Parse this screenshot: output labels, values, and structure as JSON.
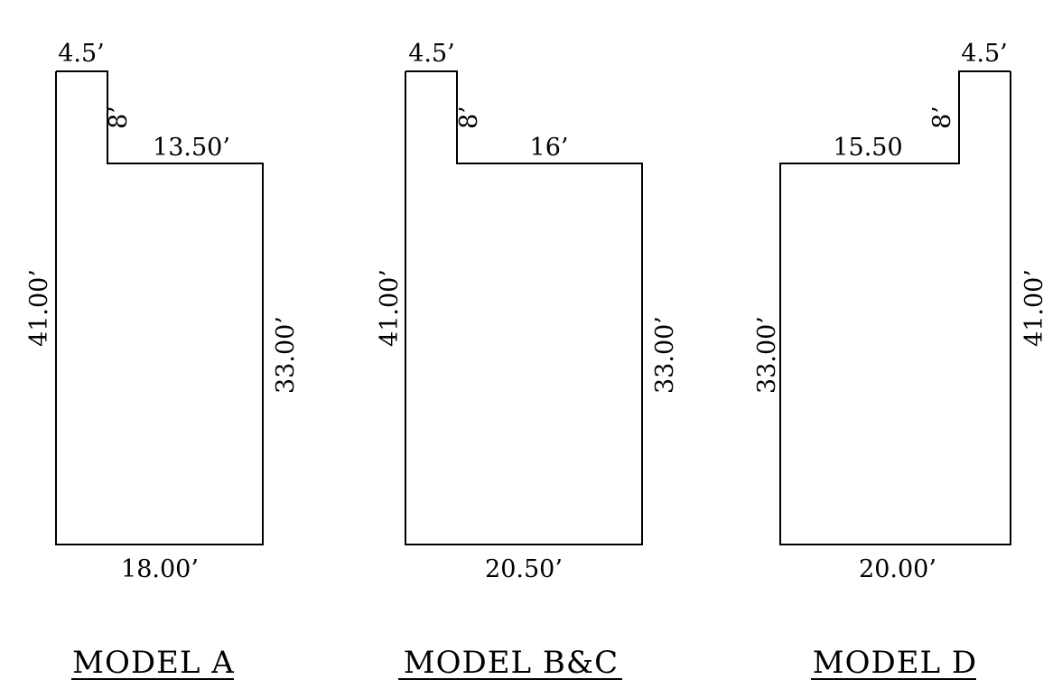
{
  "models": [
    {
      "title": "MODEL  A",
      "dims": {
        "notch_width": "4.5’",
        "notch_depth": "8’",
        "top_step": "13.50’",
        "left_side": "41.00’",
        "right_side": "33.00’",
        "bottom": "18.00’"
      }
    },
    {
      "title": "MODEL  B&C",
      "dims": {
        "notch_width": "4.5’",
        "notch_depth": "8’",
        "top_step": "16’",
        "left_side": "41.00’",
        "right_side": "33.00’",
        "bottom": "20.50’"
      }
    },
    {
      "title": "MODEL  D",
      "dims": {
        "notch_width": "4.5’",
        "notch_depth": "8’",
        "top_step": "15.50",
        "left_side": "33.00’",
        "right_side": "41.00’",
        "bottom": "20.00’"
      }
    }
  ]
}
